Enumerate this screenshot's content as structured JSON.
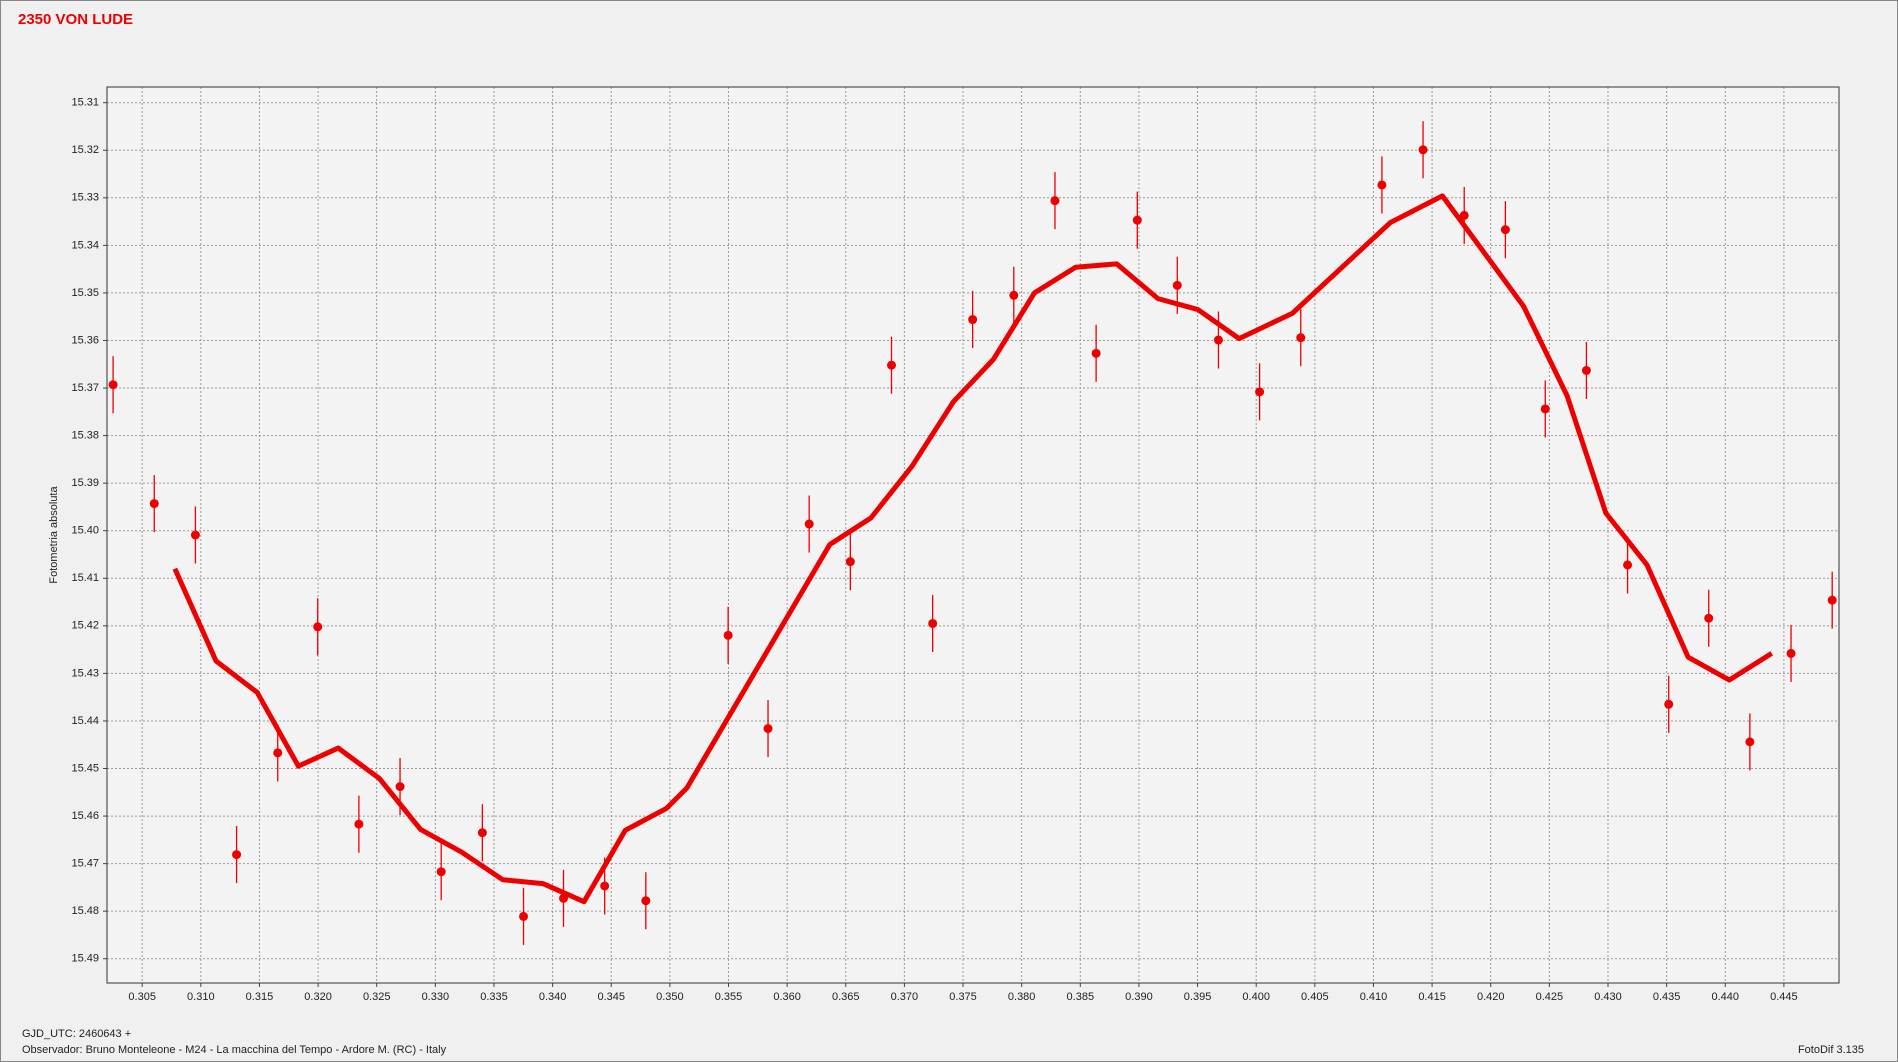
{
  "chart_data": {
    "type": "scatter",
    "title": "2350 VON LUDE",
    "y_label": "Fotometria absoluta",
    "x_label": "GJD_UTC: 2460643 +",
    "footer": "Observador: Bruno Monteleone - M24 - La macchina del Tempo - Ardore M. (RC) - Italy",
    "software": "FotoDif 3.135",
    "xlim": [
      0.302,
      0.4497
    ],
    "ylim": [
      15.4951,
      15.3067
    ],
    "grid": true,
    "xticks": [
      0.305,
      {
        "value": 0.31,
        "label": "0.310"
      },
      0.315,
      {
        "value": 0.32,
        "label": "0.320"
      },
      0.325,
      {
        "value": 0.33,
        "label": "0.330"
      },
      0.335,
      {
        "value": 0.34,
        "label": "0.340"
      },
      0.345,
      {
        "value": 0.35,
        "label": "0.350"
      },
      0.355,
      {
        "value": 0.36,
        "label": "0.360"
      },
      0.365,
      {
        "value": 0.37,
        "label": "0.370"
      },
      0.375,
      {
        "value": 0.38,
        "label": "0.380"
      },
      0.385,
      {
        "value": 0.39,
        "label": "0.390"
      },
      0.395,
      {
        "value": 0.4,
        "label": "0.400"
      },
      0.405,
      {
        "value": 0.41,
        "label": "0.410"
      },
      0.415,
      {
        "value": 0.42,
        "label": "0.420"
      },
      0.425,
      {
        "value": 0.43,
        "label": "0.430"
      },
      0.435,
      {
        "value": 0.44,
        "label": "0.440"
      },
      0.445
    ],
    "yticks": [
      15.31,
      15.32,
      15.33,
      15.34,
      15.35,
      15.36,
      15.37,
      15.38,
      15.39,
      {
        "value": 15.4,
        "label": "15.40"
      },
      15.41,
      15.42,
      15.43,
      15.44,
      15.45,
      15.46,
      15.47,
      15.48,
      15.49
    ],
    "series": [
      {
        "type": "scatter",
        "color": "#ee0000",
        "x": [
          0.30252,
          0.30603,
          0.30954,
          0.31305,
          0.31656,
          0.31997,
          0.32348,
          0.32699,
          0.3305,
          0.33401,
          0.33752,
          0.34093,
          0.34444,
          0.34795,
          0.35497,
          0.35837,
          0.36188,
          0.36539,
          0.3689,
          0.37241,
          0.37582,
          0.37933,
          0.38284,
          0.38635,
          0.38986,
          0.39327,
          0.39678,
          0.40029,
          0.4038,
          0.41072,
          0.41423,
          0.41774,
          0.42125,
          0.42465,
          0.42816,
          0.43167,
          0.43518,
          0.43859,
          0.4421,
          0.44561,
          0.44912
        ],
        "values": [
          15.3693,
          15.3943,
          15.4009,
          15.4681,
          15.4467,
          15.4202,
          15.4617,
          15.4538,
          15.4717,
          15.4635,
          15.4811,
          15.4773,
          15.4747,
          15.4778,
          15.422,
          15.4416,
          15.3986,
          15.4065,
          15.3652,
          15.4195,
          15.3556,
          15.3505,
          15.3306,
          15.3627,
          15.3347,
          15.3484,
          15.3599,
          15.3708,
          15.3594,
          15.3273,
          15.3199,
          15.3337,
          15.3367,
          15.3744,
          15.3663,
          15.4072,
          15.4365,
          15.4184,
          15.4444,
          15.4258,
          15.4146
        ],
        "errors": [
          0.006,
          0.006,
          0.006,
          0.006,
          0.006,
          0.006,
          0.006,
          0.006,
          0.006,
          0.006,
          0.006,
          0.006,
          0.006,
          0.006,
          0.006,
          0.006,
          0.006,
          0.006,
          0.006,
          0.006,
          0.006,
          0.006,
          0.006,
          0.006,
          0.006,
          0.006,
          0.006,
          0.006,
          0.006,
          0.006,
          0.006,
          0.006,
          0.006,
          0.006,
          0.006,
          0.006,
          0.006,
          0.006,
          0.006,
          0.006,
          0.006
        ]
      },
      {
        "type": "line",
        "color": "#ee0000",
        "x": [
          0.30779,
          0.3113,
          0.31481,
          0.31832,
          0.32172,
          0.32523,
          0.32874,
          0.33225,
          0.33576,
          0.33917,
          0.34268,
          0.34619,
          0.3497,
          0.35145,
          0.36364,
          0.36715,
          0.37066,
          0.37417,
          0.37758,
          0.38109,
          0.3846,
          0.38811,
          0.39162,
          0.39503,
          0.39854,
          0.40308,
          0.41144,
          0.41588,
          0.4228,
          0.42651,
          0.42982,
          0.43333,
          0.43684,
          0.44035,
          0.44396
        ],
        "values": [
          15.408,
          15.4274,
          15.434,
          15.4495,
          15.4457,
          15.4521,
          15.4628,
          15.4676,
          15.4734,
          15.4742,
          15.478,
          15.463,
          15.4584,
          15.4541,
          15.4029,
          15.3973,
          15.3864,
          15.3729,
          15.364,
          15.35,
          15.3446,
          15.3439,
          15.3512,
          15.3535,
          15.3596,
          15.3543,
          15.3352,
          15.3296,
          15.3528,
          15.3716,
          15.3963,
          15.4072,
          15.4266,
          15.4314,
          15.4258
        ]
      }
    ]
  }
}
